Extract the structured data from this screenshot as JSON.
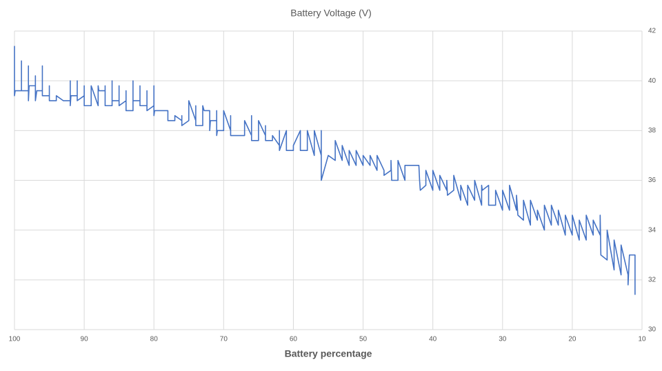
{
  "chart_data": {
    "type": "line",
    "title": "Battery Voltage (V)",
    "x_label": "Battery percentage",
    "x": [
      100,
      100,
      99.9,
      99,
      99,
      99,
      98,
      98,
      98,
      97.9,
      97,
      97,
      97,
      96.8,
      96,
      96,
      96,
      95,
      95,
      95,
      94,
      94,
      93,
      92,
      92,
      92,
      91.9,
      91,
      91,
      91,
      90,
      90,
      90,
      89,
      89,
      88,
      88,
      87.9,
      87,
      87,
      87,
      86,
      86,
      86,
      85,
      85,
      85,
      84,
      84,
      84,
      83,
      83,
      83,
      82,
      82,
      82,
      81,
      81,
      81,
      80,
      80,
      80,
      79.9,
      78,
      78,
      77,
      77,
      76,
      76,
      76,
      75,
      75,
      74,
      74,
      74,
      73,
      73,
      72.8,
      72,
      72,
      71.9,
      71,
      71,
      71,
      70.9,
      70,
      70,
      69,
      69,
      69,
      68,
      67,
      67,
      66,
      66,
      66,
      65,
      65,
      64,
      64,
      64,
      63,
      63,
      62,
      62,
      62,
      61,
      61,
      60,
      60,
      59,
      59,
      58,
      58,
      57,
      57,
      56,
      56,
      56,
      55,
      54,
      54,
      53,
      53,
      52,
      52,
      51,
      51,
      50,
      50,
      49,
      49,
      48,
      48,
      47,
      47,
      46,
      46,
      45.9,
      45,
      45,
      44,
      44,
      43.8,
      42,
      41.9,
      41.8,
      41,
      41,
      40,
      40,
      39,
      39,
      38,
      38,
      37.9,
      37,
      37,
      36,
      36,
      35,
      35,
      34,
      34,
      33,
      33,
      32.9,
      32,
      32,
      31,
      31,
      30,
      30,
      29,
      29,
      28,
      28,
      27.8,
      27,
      27,
      26,
      26,
      25,
      25,
      24,
      24,
      23,
      23,
      22,
      22,
      21,
      21,
      20,
      20,
      19,
      19,
      18,
      18,
      17,
      17,
      16,
      16,
      15.9,
      15,
      15,
      14,
      14,
      13,
      13,
      12,
      12,
      11.8,
      11,
      11
    ],
    "series": [
      {
        "color": "#4472c4",
        "values": [
          41.4,
          39.4,
          39.6,
          39.6,
          40.8,
          39.6,
          39.6,
          40.6,
          39.2,
          39.8,
          39.8,
          40.2,
          39.2,
          39.6,
          39.6,
          40.6,
          39.4,
          39.4,
          39.8,
          39.2,
          39.2,
          39.4,
          39.2,
          39.2,
          40,
          39,
          39.4,
          39.4,
          40,
          39.2,
          39.4,
          39.8,
          39,
          39,
          39.8,
          39,
          39.8,
          39.6,
          39.6,
          39.8,
          39,
          39,
          40,
          39.2,
          39.2,
          39.8,
          39,
          39.2,
          39.6,
          38.8,
          38.8,
          40,
          39.2,
          39.2,
          39.8,
          39,
          39,
          39.6,
          38.8,
          39,
          39.8,
          38.6,
          38.8,
          38.8,
          38.4,
          38.4,
          38.6,
          38.4,
          38.6,
          38.2,
          38.4,
          39.2,
          38.4,
          39,
          38.2,
          38.2,
          39,
          38.8,
          38.8,
          38,
          38.4,
          38.4,
          38.8,
          37.8,
          38,
          38,
          38.8,
          38,
          38.6,
          37.8,
          37.8,
          37.8,
          38.4,
          37.8,
          38.6,
          37.6,
          37.6,
          38.4,
          37.8,
          38.2,
          37.6,
          37.6,
          37.8,
          37.4,
          38,
          37.2,
          38,
          37.2,
          37.2,
          37.4,
          38,
          37.2,
          37.2,
          38,
          37,
          38,
          37,
          38,
          36,
          37,
          36.8,
          37.6,
          36.8,
          37.4,
          36.6,
          37.2,
          36.6,
          37.2,
          36.6,
          37,
          36.6,
          37,
          36.4,
          37,
          36.4,
          36.2,
          36.4,
          36.8,
          36,
          36,
          36.8,
          36,
          36.6,
          36.6,
          36.6,
          36,
          35.6,
          35.8,
          36.4,
          35.6,
          36.4,
          35.6,
          36.2,
          35.6,
          36,
          35.4,
          35.6,
          36.2,
          35.2,
          35.8,
          35,
          35.8,
          35.2,
          36,
          35,
          35.8,
          35.6,
          35.8,
          35,
          35,
          35.6,
          34.8,
          35.6,
          34.8,
          35.8,
          34.8,
          35.4,
          34.6,
          34.4,
          35.2,
          34.2,
          35.2,
          34.4,
          34.8,
          34,
          35,
          34.2,
          35,
          34.2,
          34.8,
          33.8,
          34.6,
          33.8,
          34.6,
          33.6,
          34.4,
          33.6,
          34.6,
          33.8,
          34.4,
          33.8,
          34.6,
          33,
          32.8,
          34,
          32.4,
          33.6,
          32.2,
          33.4,
          32.2,
          31.8,
          33,
          33,
          31.4
        ]
      }
    ],
    "xlim": [
      100,
      10
    ],
    "xticks": [
      100,
      90,
      80,
      70,
      60,
      50,
      40,
      30,
      20,
      10
    ],
    "ylim": [
      30,
      42
    ],
    "yticks": [
      30,
      32,
      34,
      36,
      38,
      40,
      42
    ],
    "y_axis_position": "right",
    "grid": true
  }
}
